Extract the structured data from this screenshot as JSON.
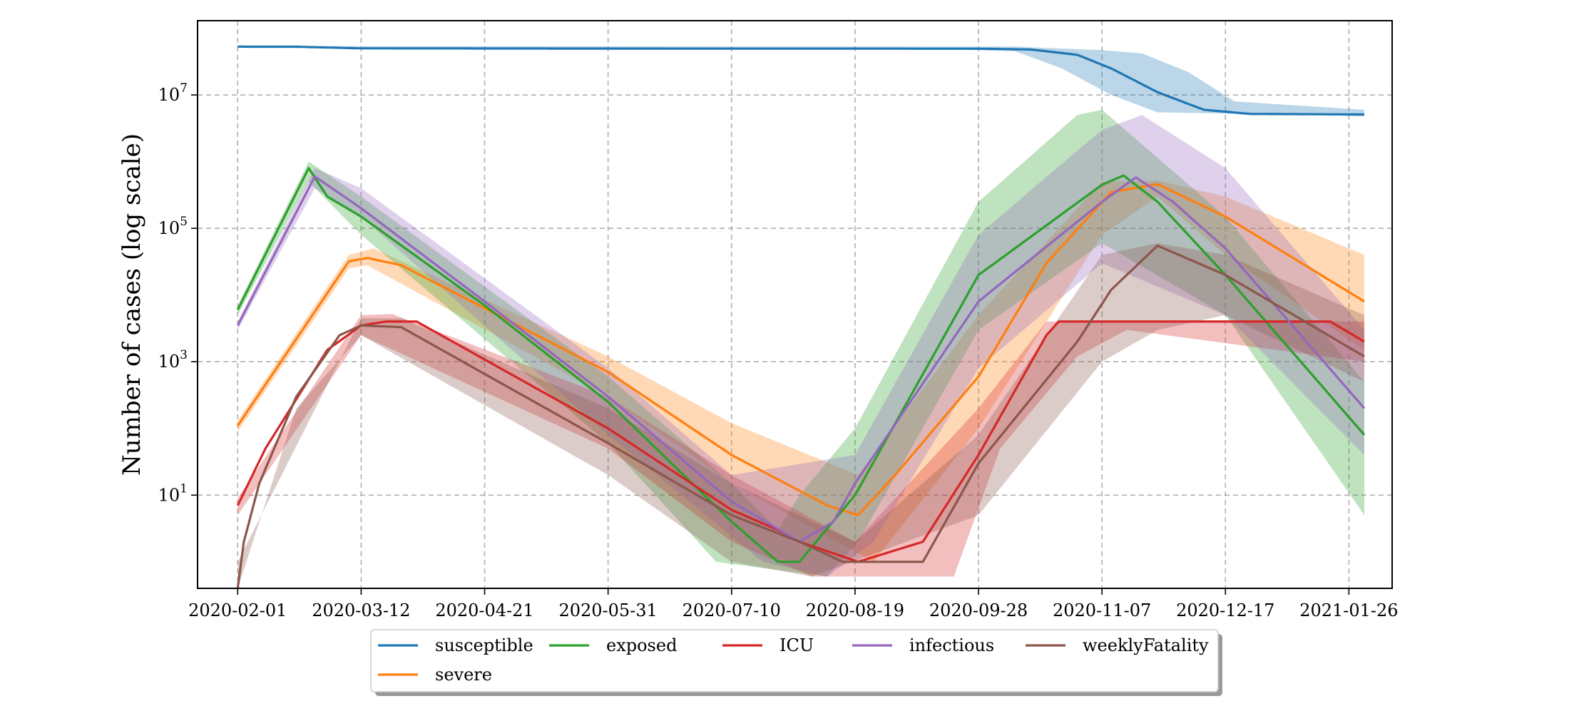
{
  "chart_data": {
    "type": "line",
    "title": "",
    "xlabel": "",
    "ylabel": "Number of cases (log scale)",
    "y_scale": "log",
    "ylim": [
      0.4,
      130000000
    ],
    "xlim": [
      "2020-01-19",
      "2021-02-09"
    ],
    "grid": true,
    "grid_style": "dashed",
    "legend_position": "below plot, centered",
    "x_tick_labels": [
      "2020-02-01",
      "2020-03-12",
      "2020-04-21",
      "2020-05-31",
      "2020-07-10",
      "2020-08-19",
      "2020-09-28",
      "2020-11-07",
      "2020-12-17",
      "2021-01-26"
    ],
    "y_ticks": [
      {
        "value": 10,
        "base": "10",
        "exp": "1"
      },
      {
        "value": 1000,
        "base": "10",
        "exp": "3"
      },
      {
        "value": 100000,
        "base": "10",
        "exp": "5"
      },
      {
        "value": 10000000,
        "base": "10",
        "exp": "7"
      }
    ],
    "series": [
      {
        "name": "susceptible",
        "color": "#1f77b4",
        "points": [
          [
            "2020-02-01",
            53000000
          ],
          [
            "2020-02-20",
            52900000
          ],
          [
            "2020-03-12",
            50000000
          ],
          [
            "2020-06-01",
            49600000
          ],
          [
            "2020-08-19",
            49500000
          ],
          [
            "2020-09-30",
            49400000
          ],
          [
            "2020-10-15",
            48000000
          ],
          [
            "2020-10-30",
            40000000
          ],
          [
            "2020-11-10",
            25000000
          ],
          [
            "2020-11-25",
            11000000
          ],
          [
            "2020-12-10",
            6000000
          ],
          [
            "2020-12-25",
            5200000
          ],
          [
            "2021-01-31",
            5100000
          ]
        ],
        "band_upper": [
          [
            "2020-02-01",
            54000000
          ],
          [
            "2020-10-10",
            53000000
          ],
          [
            "2020-11-07",
            47000000
          ],
          [
            "2020-11-20",
            42000000
          ],
          [
            "2020-12-05",
            22000000
          ],
          [
            "2020-12-20",
            8000000
          ],
          [
            "2021-01-31",
            6000000
          ]
        ],
        "band_lower": [
          [
            "2020-02-01",
            52000000
          ],
          [
            "2020-09-20",
            48500000
          ],
          [
            "2020-10-10",
            45000000
          ],
          [
            "2020-10-25",
            25000000
          ],
          [
            "2020-11-10",
            10000000
          ],
          [
            "2020-11-25",
            5500000
          ],
          [
            "2021-01-31",
            4800000
          ]
        ]
      },
      {
        "name": "severe",
        "color": "#ff7f0e",
        "points": [
          [
            "2020-02-01",
            110
          ],
          [
            "2020-03-08",
            32000
          ],
          [
            "2020-03-14",
            36000
          ],
          [
            "2020-03-25",
            28000
          ],
          [
            "2020-05-31",
            700
          ],
          [
            "2020-07-10",
            40
          ],
          [
            "2020-08-10",
            7
          ],
          [
            "2020-08-20",
            5
          ],
          [
            "2020-09-01",
            20
          ],
          [
            "2020-09-28",
            600
          ],
          [
            "2020-10-20",
            30000
          ],
          [
            "2020-11-10",
            350000
          ],
          [
            "2020-11-25",
            460000
          ],
          [
            "2020-12-17",
            150000
          ],
          [
            "2021-01-31",
            8000
          ]
        ],
        "band_upper": [
          [
            "2020-02-01",
            130
          ],
          [
            "2020-03-08",
            40000
          ],
          [
            "2020-03-16",
            50000
          ],
          [
            "2020-05-31",
            1200
          ],
          [
            "2020-07-10",
            120
          ],
          [
            "2020-08-20",
            20
          ],
          [
            "2020-09-28",
            5000
          ],
          [
            "2020-11-07",
            500000
          ],
          [
            "2020-11-25",
            520000
          ],
          [
            "2020-12-17",
            300000
          ],
          [
            "2021-01-31",
            40000
          ]
        ],
        "band_lower": [
          [
            "2020-02-01",
            90
          ],
          [
            "2020-03-08",
            25000
          ],
          [
            "2020-03-14",
            28000
          ],
          [
            "2020-05-31",
            300
          ],
          [
            "2020-07-10",
            15
          ],
          [
            "2020-08-25",
            1
          ],
          [
            "2020-09-28",
            100
          ],
          [
            "2020-11-07",
            80000
          ],
          [
            "2020-11-25",
            300000
          ],
          [
            "2020-12-17",
            40000
          ],
          [
            "2021-01-31",
            1500
          ]
        ]
      },
      {
        "name": "exposed",
        "color": "#2ca02c",
        "points": [
          [
            "2020-02-01",
            6000
          ],
          [
            "2020-02-24",
            800000
          ],
          [
            "2020-03-01",
            300000
          ],
          [
            "2020-03-12",
            150000
          ],
          [
            "2020-04-21",
            7000
          ],
          [
            "2020-05-31",
            250
          ],
          [
            "2020-07-10",
            4
          ],
          [
            "2020-07-25",
            1
          ],
          [
            "2020-08-01",
            1
          ],
          [
            "2020-08-19",
            10
          ],
          [
            "2020-09-28",
            20000
          ],
          [
            "2020-11-07",
            450000
          ],
          [
            "2020-11-14",
            620000
          ],
          [
            "2020-11-25",
            250000
          ],
          [
            "2020-12-17",
            20000
          ],
          [
            "2021-01-31",
            80
          ]
        ],
        "band_upper": [
          [
            "2020-02-01",
            7000
          ],
          [
            "2020-02-24",
            1000000
          ],
          [
            "2020-03-12",
            300000
          ],
          [
            "2020-05-31",
            600
          ],
          [
            "2020-07-10",
            15
          ],
          [
            "2020-07-25",
            3
          ],
          [
            "2020-08-01",
            10
          ],
          [
            "2020-08-19",
            100
          ],
          [
            "2020-09-28",
            250000
          ],
          [
            "2020-10-30",
            5000000
          ],
          [
            "2020-11-07",
            6000000
          ],
          [
            "2020-12-17",
            150000
          ],
          [
            "2021-01-31",
            500
          ]
        ],
        "band_lower": [
          [
            "2020-02-01",
            5000
          ],
          [
            "2020-02-24",
            500000
          ],
          [
            "2020-03-12",
            80000
          ],
          [
            "2020-05-31",
            60
          ],
          [
            "2020-07-05",
            1
          ],
          [
            "2020-08-10",
            0.6
          ],
          [
            "2020-08-20",
            2
          ],
          [
            "2020-09-28",
            3000
          ],
          [
            "2020-11-07",
            60000
          ],
          [
            "2020-12-17",
            5000
          ],
          [
            "2021-01-31",
            5
          ]
        ]
      },
      {
        "name": "ICU",
        "color": "#d62728",
        "points": [
          [
            "2020-02-01",
            7
          ],
          [
            "2020-02-10",
            50
          ],
          [
            "2020-03-01",
            1500
          ],
          [
            "2020-03-12",
            3500
          ],
          [
            "2020-03-20",
            4000
          ],
          [
            "2020-03-30",
            4000
          ],
          [
            "2020-05-31",
            100
          ],
          [
            "2020-07-10",
            6
          ],
          [
            "2020-07-25",
            3
          ],
          [
            "2020-08-01",
            2
          ],
          [
            "2020-08-20",
            1
          ],
          [
            "2020-09-10",
            2
          ],
          [
            "2020-09-28",
            40
          ],
          [
            "2020-10-20",
            2500
          ],
          [
            "2020-10-24",
            4000
          ],
          [
            "2021-01-20",
            4000
          ],
          [
            "2021-01-31",
            2000
          ]
        ],
        "band_upper": [
          [
            "2020-02-01",
            9
          ],
          [
            "2020-03-12",
            5000
          ],
          [
            "2020-03-22",
            5200
          ],
          [
            "2020-05-31",
            300
          ],
          [
            "2020-07-10",
            20
          ],
          [
            "2020-08-19",
            2
          ],
          [
            "2020-09-28",
            200
          ],
          [
            "2020-10-20",
            4000
          ],
          [
            "2021-01-31",
            4000
          ]
        ],
        "band_lower": [
          [
            "2020-02-01",
            5
          ],
          [
            "2020-03-12",
            2500
          ],
          [
            "2020-05-31",
            50
          ],
          [
            "2020-07-10",
            2
          ],
          [
            "2020-08-05",
            0.6
          ],
          [
            "2020-09-20",
            0.6
          ],
          [
            "2020-10-05",
            50
          ],
          [
            "2020-10-30",
            1200
          ],
          [
            "2020-11-15",
            3000
          ],
          [
            "2021-01-31",
            1000
          ]
        ]
      },
      {
        "name": "infectious",
        "color": "#9467bd",
        "points": [
          [
            "2020-02-01",
            3500
          ],
          [
            "2020-02-26",
            600000
          ],
          [
            "2020-03-12",
            200000
          ],
          [
            "2020-04-21",
            8000
          ],
          [
            "2020-05-31",
            300
          ],
          [
            "2020-07-10",
            8
          ],
          [
            "2020-08-01",
            2
          ],
          [
            "2020-08-12",
            4
          ],
          [
            "2020-08-19",
            15
          ],
          [
            "2020-09-28",
            8000
          ],
          [
            "2020-11-07",
            250000
          ],
          [
            "2020-11-18",
            580000
          ],
          [
            "2020-11-30",
            250000
          ],
          [
            "2020-12-17",
            50000
          ],
          [
            "2021-01-31",
            200
          ]
        ],
        "band_upper": [
          [
            "2020-02-01",
            4000
          ],
          [
            "2020-02-26",
            800000
          ],
          [
            "2020-03-12",
            400000
          ],
          [
            "2020-05-31",
            800
          ],
          [
            "2020-07-10",
            20
          ],
          [
            "2020-08-19",
            40
          ],
          [
            "2020-09-28",
            80000
          ],
          [
            "2020-11-07",
            3000000
          ],
          [
            "2020-11-20",
            5000000
          ],
          [
            "2020-12-17",
            800000
          ],
          [
            "2021-01-31",
            3000
          ]
        ],
        "band_lower": [
          [
            "2020-02-01",
            3000
          ],
          [
            "2020-02-26",
            400000
          ],
          [
            "2020-03-12",
            150000
          ],
          [
            "2020-05-31",
            80
          ],
          [
            "2020-07-20",
            1
          ],
          [
            "2020-08-10",
            0.6
          ],
          [
            "2020-08-25",
            2
          ],
          [
            "2020-09-28",
            800
          ],
          [
            "2020-11-07",
            30000
          ],
          [
            "2020-12-17",
            5000
          ],
          [
            "2021-01-31",
            40
          ]
        ]
      },
      {
        "name": "weeklyFatality",
        "color": "#8c564b",
        "points": [
          [
            "2020-02-01",
            0.4
          ],
          [
            "2020-02-03",
            2
          ],
          [
            "2020-02-08",
            15
          ],
          [
            "2020-02-20",
            300
          ],
          [
            "2020-03-05",
            2500
          ],
          [
            "2020-03-12",
            3500
          ],
          [
            "2020-03-25",
            3300
          ],
          [
            "2020-05-31",
            60
          ],
          [
            "2020-07-10",
            5
          ],
          [
            "2020-08-01",
            2
          ],
          [
            "2020-08-15",
            1
          ],
          [
            "2020-09-10",
            1
          ],
          [
            "2020-09-28",
            30
          ],
          [
            "2020-10-30",
            2000
          ],
          [
            "2020-11-10",
            12000
          ],
          [
            "2020-11-25",
            55000
          ],
          [
            "2020-12-17",
            20000
          ],
          [
            "2021-01-31",
            1200
          ]
        ],
        "band_upper": [
          [
            "2020-02-01",
            1
          ],
          [
            "2020-03-12",
            4500
          ],
          [
            "2020-03-25",
            4500
          ],
          [
            "2020-05-31",
            200
          ],
          [
            "2020-07-10",
            15
          ],
          [
            "2020-08-19",
            2
          ],
          [
            "2020-09-28",
            80
          ],
          [
            "2020-11-07",
            40000
          ],
          [
            "2020-11-25",
            60000
          ],
          [
            "2020-12-17",
            40000
          ],
          [
            "2021-01-31",
            5000
          ]
        ],
        "band_lower": [
          [
            "2020-02-01",
            0.4
          ],
          [
            "2020-02-20",
            200
          ],
          [
            "2020-03-12",
            2500
          ],
          [
            "2020-05-31",
            20
          ],
          [
            "2020-07-10",
            1
          ],
          [
            "2020-08-05",
            0.6
          ],
          [
            "2020-09-28",
            5
          ],
          [
            "2020-11-07",
            1000
          ],
          [
            "2020-11-25",
            3000
          ],
          [
            "2020-12-17",
            5000
          ],
          [
            "2021-01-31",
            500
          ]
        ]
      }
    ],
    "legend_order": [
      "susceptible",
      "exposed",
      "ICU",
      "infectious",
      "weeklyFatality",
      "severe"
    ]
  }
}
